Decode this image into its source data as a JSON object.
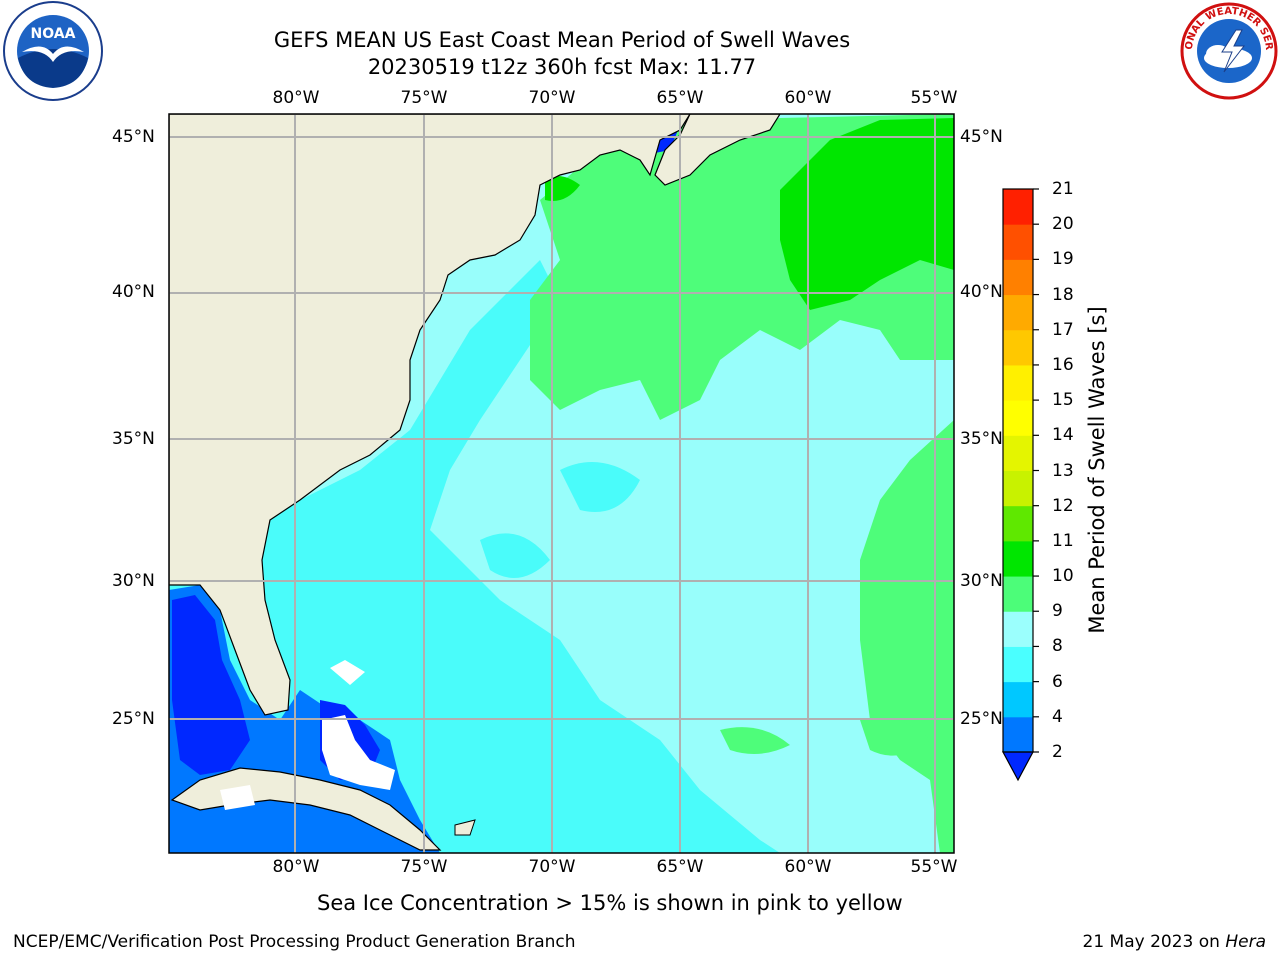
{
  "header": {
    "title_line1": "GEFS MEAN US East Coast Mean Period of Swell Waves",
    "title_line2": "20230519 t12z 360h fcst   Max: 11.77"
  },
  "logos": {
    "left": {
      "icon": "noaa-logo",
      "text": "NOAA"
    },
    "right": {
      "icon": "nws-seal",
      "text": "NATIONAL WEATHER SERVICE"
    }
  },
  "map": {
    "longitude_labels": [
      "80°W",
      "75°W",
      "70°W",
      "65°W",
      "60°W",
      "55°W"
    ],
    "latitude_labels": [
      "45°N",
      "40°N",
      "35°N",
      "30°N",
      "25°N"
    ],
    "colors": {
      "land": "#efeedb",
      "coast": "#000000",
      "grid": "#b0b0b0",
      "ocean_9_10": "#4efd7a",
      "ocean_8_9": "#98fefb",
      "ocean_6_8": "#4afcfa"
    }
  },
  "colorbar": {
    "title": "Mean Period of Swell Waves [s]",
    "levels": [
      "2",
      "4",
      "6",
      "8",
      "9",
      "10",
      "11",
      "12",
      "13",
      "14",
      "15",
      "16",
      "17",
      "18",
      "19",
      "20",
      "21"
    ],
    "colors": [
      "#0078ff",
      "#00c8ff",
      "#4affff",
      "#9bfffd",
      "#4cfd79",
      "#00e600",
      "#5fe800",
      "#c8f200",
      "#e4f500",
      "#ffff00",
      "#fff000",
      "#ffc800",
      "#ffaa00",
      "#ff8000",
      "#ff5000",
      "#ff2000"
    ],
    "under_color": "#0028ff"
  },
  "notes": {
    "sea_ice": "Sea Ice Concentration > 15% is shown in pink to yellow"
  },
  "footer": {
    "left": "NCEP/EMC/Verification Post Processing Product Generation Branch",
    "date": "21 May 2023 on",
    "host": "Hera"
  }
}
